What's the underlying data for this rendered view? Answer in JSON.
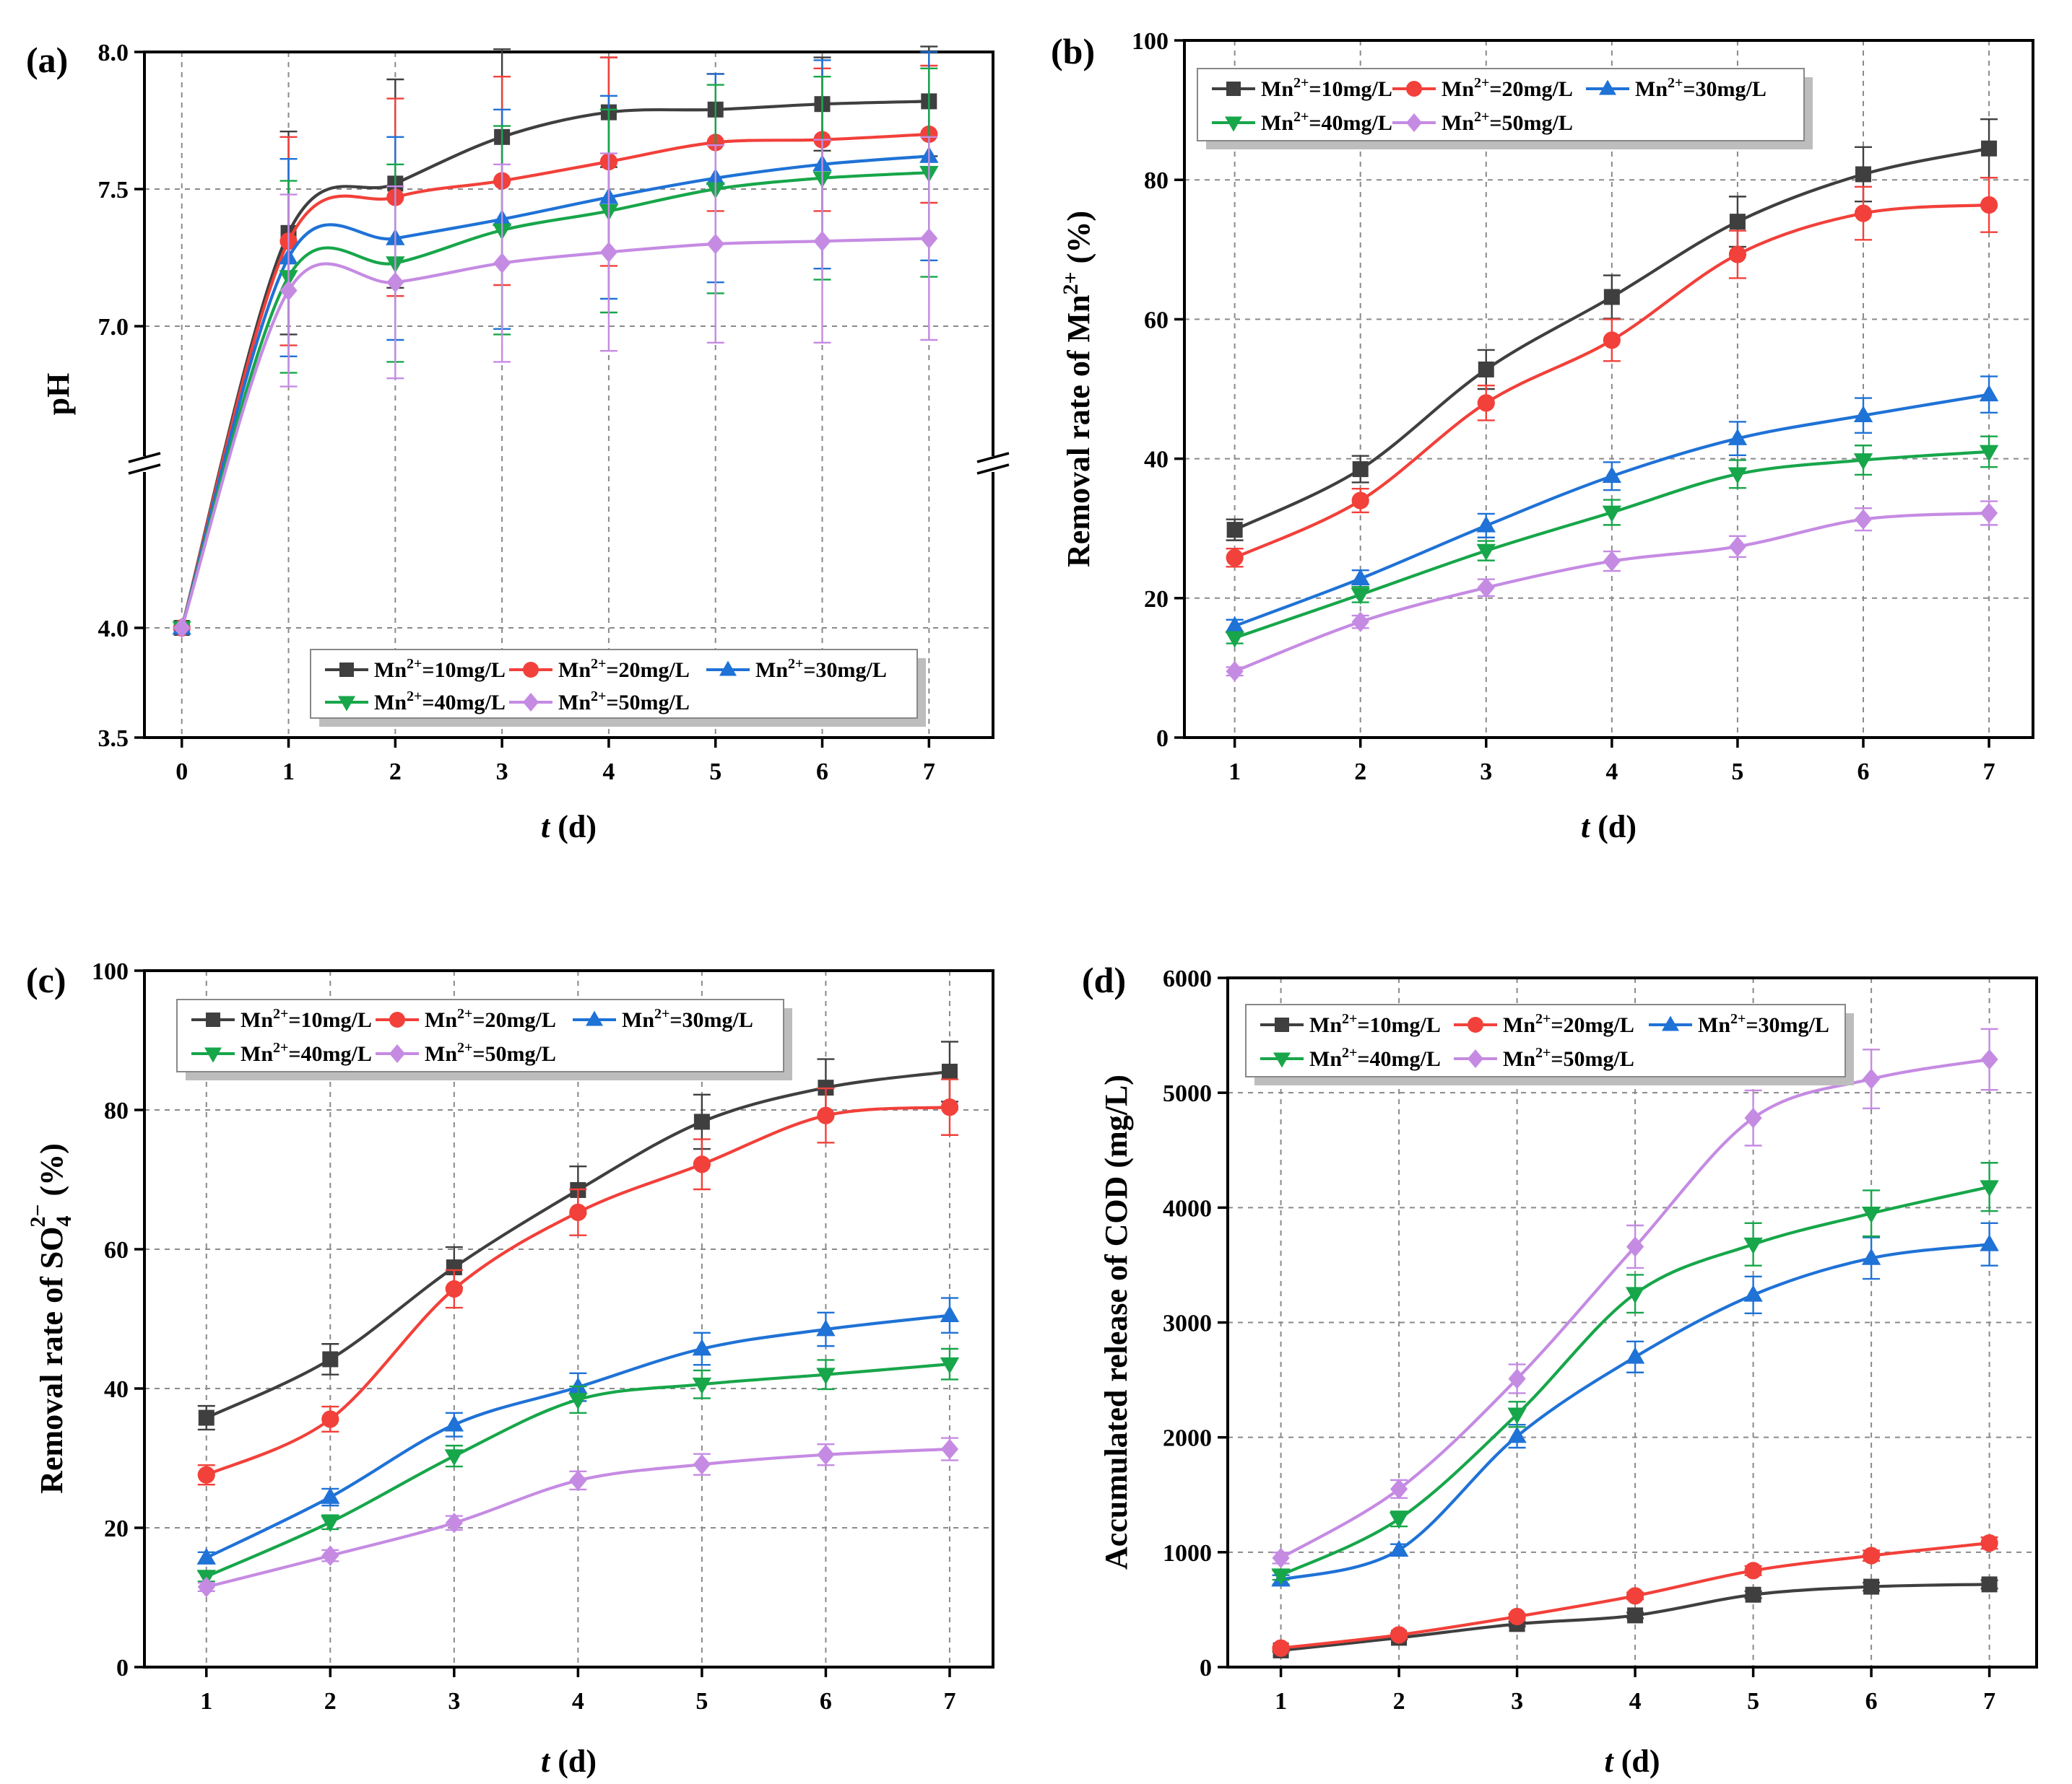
{
  "colors": {
    "Mn10": "#3f3f3f",
    "Mn20": "#f2403a",
    "Mn30": "#1f72d6",
    "Mn40": "#17a64a",
    "Mn50": "#c58be3"
  },
  "chart_data": [
    {
      "type": "line",
      "panel_label": "(a)",
      "xlabel_italic": "t",
      "xlabel_rest": " (d)",
      "ylabel": "pH",
      "x": [
        0,
        1,
        2,
        3,
        4,
        5,
        6,
        7
      ],
      "xticks": [
        "0",
        "1",
        "2",
        "3",
        "4",
        "5",
        "6",
        "7"
      ],
      "yticks": [
        "3.5",
        "4.0",
        "7.0",
        "7.5",
        "8.0"
      ],
      "ylim": [
        3.5,
        8.0
      ],
      "axis_break": [
        4.4,
        6.5
      ],
      "grid": true,
      "legend_position": "bottom-center",
      "series": [
        {
          "name": "Mn2+=10mg/L",
          "legend_pre": "Mn",
          "legend_sup": "2+",
          "legend_post": "=10mg/L",
          "marker": "square",
          "color_key": "Mn10",
          "values": [
            4.0,
            7.34,
            7.52,
            7.69,
            7.78,
            7.79,
            7.81,
            7.82
          ],
          "errors": [
            0,
            0.37,
            0.38,
            0.32,
            0.2,
            0.13,
            0.17,
            0.2
          ]
        },
        {
          "name": "Mn2+=20mg/L",
          "legend_pre": "Mn",
          "legend_sup": "2+",
          "legend_post": "=20mg/L",
          "marker": "circle",
          "color_key": "Mn20",
          "values": [
            4.0,
            7.31,
            7.47,
            7.53,
            7.6,
            7.67,
            7.68,
            7.7
          ],
          "errors": [
            0,
            0.38,
            0.36,
            0.38,
            0.38,
            0.25,
            0.26,
            0.25
          ]
        },
        {
          "name": "Mn2+=30mg/L",
          "legend_pre": "Mn",
          "legend_sup": "2+",
          "legend_post": "=30mg/L",
          "marker": "triangle-up",
          "color_key": "Mn30",
          "values": [
            4.0,
            7.25,
            7.32,
            7.39,
            7.47,
            7.54,
            7.59,
            7.62
          ],
          "errors": [
            0,
            0.36,
            0.37,
            0.4,
            0.37,
            0.38,
            0.38,
            0.38
          ]
        },
        {
          "name": "Mn2+=40mg/L",
          "legend_pre": "Mn",
          "legend_sup": "2+",
          "legend_post": "=40mg/L",
          "marker": "triangle-down",
          "color_key": "Mn40",
          "values": [
            4.0,
            7.18,
            7.23,
            7.35,
            7.42,
            7.5,
            7.54,
            7.56
          ],
          "errors": [
            0,
            0.35,
            0.36,
            0.38,
            0.37,
            0.38,
            0.37,
            0.38
          ]
        },
        {
          "name": "Mn2+=50mg/L",
          "legend_pre": "Mn",
          "legend_sup": "2+",
          "legend_post": "=50mg/L",
          "marker": "diamond",
          "color_key": "Mn50",
          "values": [
            4.0,
            7.13,
            7.16,
            7.23,
            7.27,
            7.3,
            7.31,
            7.32
          ],
          "errors": [
            0,
            0.35,
            0.35,
            0.36,
            0.36,
            0.36,
            0.37,
            0.37
          ]
        }
      ]
    },
    {
      "type": "line",
      "panel_label": "(b)",
      "xlabel_italic": "t",
      "xlabel_rest": " (d)",
      "ylabel_pre": "Removal rate of Mn",
      "ylabel_sup": "2+",
      "ylabel_post": " (%)",
      "x": [
        1,
        2,
        3,
        4,
        5,
        6,
        7
      ],
      "xticks": [
        "1",
        "2",
        "3",
        "4",
        "5",
        "6",
        "7"
      ],
      "yticks": [
        "0",
        "20",
        "40",
        "60",
        "80",
        "100"
      ],
      "ylim": [
        0,
        100
      ],
      "grid": true,
      "legend_position": "top-left",
      "series": [
        {
          "name": "Mn2+=10mg/L",
          "legend_pre": "Mn",
          "legend_sup": "2+",
          "legend_post": "=10mg/L",
          "marker": "square",
          "color_key": "Mn10",
          "values": [
            29.8,
            38.5,
            52.8,
            63.2,
            74.0,
            80.8,
            84.5
          ],
          "errors": [
            1.5,
            1.9,
            2.8,
            3.1,
            3.6,
            3.9,
            4.2
          ]
        },
        {
          "name": "Mn2+=20mg/L",
          "legend_pre": "Mn",
          "legend_sup": "2+",
          "legend_post": "=20mg/L",
          "marker": "circle",
          "color_key": "Mn20",
          "values": [
            25.8,
            34.0,
            48.0,
            57.0,
            69.3,
            75.2,
            76.4
          ],
          "errors": [
            1.3,
            1.7,
            2.5,
            3.0,
            3.4,
            3.8,
            3.9
          ]
        },
        {
          "name": "Mn2+=30mg/L",
          "legend_pre": "Mn",
          "legend_sup": "2+",
          "legend_post": "=30mg/L",
          "marker": "triangle-up",
          "color_key": "Mn30",
          "values": [
            16.0,
            22.8,
            30.4,
            37.5,
            42.9,
            46.2,
            49.2
          ],
          "errors": [
            0.9,
            1.2,
            1.7,
            2.0,
            2.4,
            2.5,
            2.6
          ]
        },
        {
          "name": "Mn2+=40mg/L",
          "legend_pre": "Mn",
          "legend_sup": "2+",
          "legend_post": "=40mg/L",
          "marker": "triangle-down",
          "color_key": "Mn40",
          "values": [
            14.3,
            20.5,
            26.8,
            32.3,
            37.8,
            39.8,
            41.0
          ],
          "errors": [
            0.8,
            1.1,
            1.4,
            1.8,
            2.0,
            2.1,
            2.2
          ]
        },
        {
          "name": "Mn2+=50mg/L",
          "legend_pre": "Mn",
          "legend_sup": "2+",
          "legend_post": "=50mg/L",
          "marker": "diamond",
          "color_key": "Mn50",
          "values": [
            9.5,
            16.6,
            21.5,
            25.3,
            27.4,
            31.3,
            32.2
          ],
          "errors": [
            0.6,
            0.9,
            1.2,
            1.4,
            1.5,
            1.6,
            1.7
          ]
        }
      ]
    },
    {
      "type": "line",
      "panel_label": "(c)",
      "xlabel_italic": "t",
      "xlabel_rest": " (d)",
      "ylabel_pre": "Removal rate of SO",
      "ylabel_sub": "4",
      "ylabel_sup": "2−",
      "ylabel_post": " (%)",
      "x": [
        1,
        2,
        3,
        4,
        5,
        6,
        7
      ],
      "xticks": [
        "1",
        "2",
        "3",
        "4",
        "5",
        "6",
        "7"
      ],
      "yticks": [
        "0",
        "20",
        "40",
        "60",
        "80",
        "100"
      ],
      "ylim": [
        0,
        100
      ],
      "grid": true,
      "legend_position": "top-left",
      "series": [
        {
          "name": "Mn2+=10mg/L",
          "legend_pre": "Mn",
          "legend_sup": "2+",
          "legend_post": "=10mg/L",
          "marker": "square",
          "color_key": "Mn10",
          "values": [
            35.8,
            44.2,
            57.4,
            68.5,
            78.3,
            83.2,
            85.5
          ],
          "errors": [
            1.7,
            2.2,
            2.9,
            3.4,
            3.9,
            4.1,
            4.3
          ]
        },
        {
          "name": "Mn2+=20mg/L",
          "legend_pre": "Mn",
          "legend_sup": "2+",
          "legend_post": "=20mg/L",
          "marker": "circle",
          "color_key": "Mn20",
          "values": [
            27.6,
            35.6,
            54.3,
            65.3,
            72.2,
            79.2,
            80.4
          ],
          "errors": [
            1.4,
            1.8,
            2.7,
            3.3,
            3.6,
            3.9,
            4.0
          ]
        },
        {
          "name": "Mn2+=30mg/L",
          "legend_pre": "Mn",
          "legend_sup": "2+",
          "legend_post": "=30mg/L",
          "marker": "triangle-up",
          "color_key": "Mn30",
          "values": [
            15.7,
            24.4,
            34.8,
            40.2,
            45.7,
            48.5,
            50.5
          ],
          "errors": [
            0.8,
            1.2,
            1.7,
            2.0,
            2.3,
            2.4,
            2.5
          ]
        },
        {
          "name": "Mn2+=40mg/L",
          "legend_pre": "Mn",
          "legend_sup": "2+",
          "legend_post": "=40mg/L",
          "marker": "triangle-down",
          "color_key": "Mn40",
          "values": [
            13.0,
            20.8,
            30.3,
            38.4,
            40.6,
            42.0,
            43.5
          ],
          "errors": [
            0.7,
            1.0,
            1.5,
            1.9,
            2.0,
            2.1,
            2.2
          ]
        },
        {
          "name": "Mn2+=50mg/L",
          "legend_pre": "Mn",
          "legend_sup": "2+",
          "legend_post": "=50mg/L",
          "marker": "diamond",
          "color_key": "Mn50",
          "values": [
            11.5,
            16.0,
            20.7,
            26.8,
            29.1,
            30.5,
            31.3
          ],
          "errors": [
            0.6,
            0.8,
            1.0,
            1.3,
            1.5,
            1.5,
            1.6
          ]
        }
      ]
    },
    {
      "type": "line",
      "panel_label": "(d)",
      "xlabel_italic": "t",
      "xlabel_rest": " (d)",
      "ylabel": "Accumulated release of COD (mg/L)",
      "x": [
        1,
        2,
        3,
        4,
        5,
        6,
        7
      ],
      "xticks": [
        "1",
        "2",
        "3",
        "4",
        "5",
        "6",
        "7"
      ],
      "yticks": [
        "0",
        "1000",
        "2000",
        "3000",
        "4000",
        "5000",
        "6000"
      ],
      "ylim": [
        0,
        6000
      ],
      "grid": true,
      "legend_position": "top-left",
      "series": [
        {
          "name": "Mn2+=10mg/L",
          "legend_pre": "Mn",
          "legend_sup": "2+",
          "legend_post": "=10mg/L",
          "marker": "square",
          "color_key": "Mn10",
          "values": [
            145,
            255,
            375,
            450,
            630,
            700,
            720
          ],
          "errors": [
            10,
            15,
            20,
            25,
            30,
            35,
            36
          ]
        },
        {
          "name": "Mn2+=20mg/L",
          "legend_pre": "Mn",
          "legend_sup": "2+",
          "legend_post": "=20mg/L",
          "marker": "circle",
          "color_key": "Mn20",
          "values": [
            165,
            280,
            440,
            620,
            840,
            970,
            1080
          ],
          "errors": [
            10,
            15,
            22,
            30,
            40,
            45,
            50
          ]
        },
        {
          "name": "Mn2+=30mg/L",
          "legend_pre": "Mn",
          "legend_sup": "2+",
          "legend_post": "=30mg/L",
          "marker": "triangle-up",
          "color_key": "Mn30",
          "values": [
            760,
            1020,
            2010,
            2700,
            3240,
            3560,
            3680
          ],
          "errors": [
            40,
            50,
            100,
            135,
            160,
            180,
            185
          ]
        },
        {
          "name": "Mn2+=40mg/L",
          "legend_pre": "Mn",
          "legend_sup": "2+",
          "legend_post": "=40mg/L",
          "marker": "triangle-down",
          "color_key": "Mn40",
          "values": [
            800,
            1290,
            2200,
            3250,
            3680,
            3950,
            4180
          ],
          "errors": [
            40,
            65,
            110,
            165,
            185,
            200,
            210
          ]
        },
        {
          "name": "Mn2+=50mg/L",
          "legend_pre": "Mn",
          "legend_sup": "2+",
          "legend_post": "=50mg/L",
          "marker": "diamond",
          "color_key": "Mn50",
          "values": [
            950,
            1550,
            2510,
            3660,
            4780,
            5120,
            5290
          ],
          "errors": [
            48,
            78,
            125,
            185,
            240,
            256,
            265
          ]
        }
      ]
    }
  ]
}
